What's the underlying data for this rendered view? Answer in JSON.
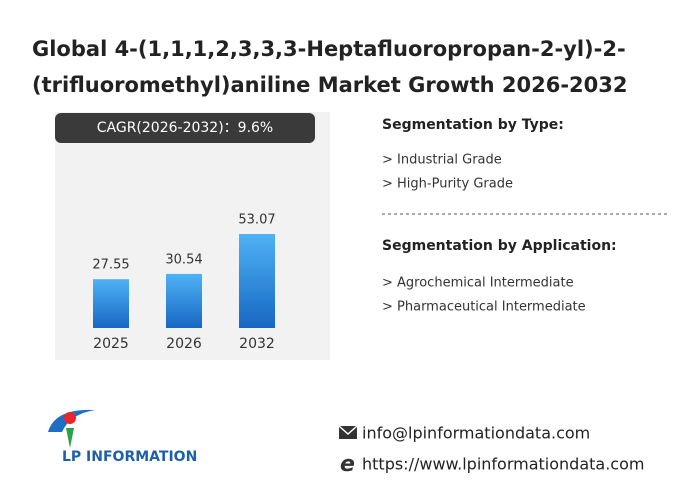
{
  "title_lines": [
    "Global 4-(1,1,1,2,3,3,3-Heptafluoropropan-2-yl)-2-",
    "(trifluoromethyl)aniline Market Growth 2026-2032"
  ],
  "chart_data": {
    "type": "bar",
    "cagr_label": "CAGR(2026-2032)：9.6%",
    "categories": [
      "2025",
      "2026",
      "2032"
    ],
    "values": [
      27.55,
      30.54,
      53.07
    ],
    "color": "#2b8ae0"
  },
  "segmentation_by_type": {
    "heading": "Segmentation by Type:",
    "items": [
      "> Industrial Grade",
      "> High-Purity Grade"
    ]
  },
  "segmentation_by_application": {
    "heading": "Segmentation by Application:",
    "items": [
      "> Agrochemical Intermediate",
      "> Pharmaceutical Intermediate"
    ]
  },
  "logo": {
    "text": "LP INFORMATION"
  },
  "contact": {
    "email": "info@lpinformationdata.com",
    "website": "https://www.lpinformationdata.com"
  }
}
